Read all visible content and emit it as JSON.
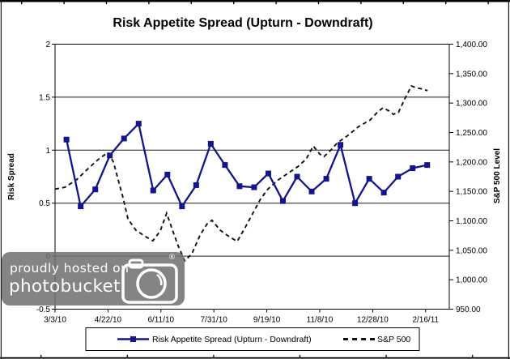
{
  "chart_data": {
    "type": "line",
    "title": "Risk Appetite Spread (Upturn - Downdraft)",
    "legend_position": "bottom",
    "grid": "horizontal",
    "x_unit": "fraction of plot width (0 = left axis 3/3/10, 1 = right axis)",
    "x_axis": {
      "tick_labels": [
        "3/3/10",
        "4/22/10",
        "6/11/10",
        "7/31/10",
        "9/19/10",
        "11/8/10",
        "12/28/10",
        "2/16/11"
      ],
      "last_label_fraction": 0.94
    },
    "left_axis": {
      "label": "Risk Spread",
      "min": -0.5,
      "max": 2,
      "tick_values": [
        2,
        1.5,
        1,
        0.5,
        0,
        -0.5
      ],
      "tick_labels": [
        "2",
        "1.5",
        "1",
        "0.5",
        "0",
        "-0.5"
      ]
    },
    "right_axis": {
      "label": "S&P 500 Level",
      "min": 950,
      "max": 1400,
      "tick_values": [
        1400,
        1350,
        1300,
        1250,
        1200,
        1150,
        1100,
        1050,
        1000,
        950
      ],
      "tick_labels": [
        "1,400.00",
        "1,350.00",
        "1,300.00",
        "1,250.00",
        "1,200.00",
        "1,150.00",
        "1,100.00",
        "1,050.00",
        "1,000.00",
        "950.00"
      ]
    },
    "gridline_values_left": [
      1.5,
      1,
      0.5,
      0
    ],
    "series": [
      {
        "name": "Risk Appetite Spread (Upturn - Downdraft)",
        "axis": "left",
        "line": "solid",
        "marker": "square",
        "color": "#14148c",
        "points": [
          [
            0.029,
            1.1
          ],
          [
            0.065,
            0.47
          ],
          [
            0.102,
            0.63
          ],
          [
            0.139,
            0.95
          ],
          [
            0.175,
            1.11
          ],
          [
            0.212,
            1.25
          ],
          [
            0.249,
            0.62
          ],
          [
            0.285,
            0.77
          ],
          [
            0.322,
            0.47
          ],
          [
            0.358,
            0.67
          ],
          [
            0.395,
            1.06
          ],
          [
            0.431,
            0.86
          ],
          [
            0.468,
            0.66
          ],
          [
            0.505,
            0.65
          ],
          [
            0.541,
            0.78
          ],
          [
            0.578,
            0.52
          ],
          [
            0.614,
            0.75
          ],
          [
            0.651,
            0.61
          ],
          [
            0.688,
            0.73
          ],
          [
            0.724,
            1.05
          ],
          [
            0.761,
            0.5
          ],
          [
            0.797,
            0.73
          ],
          [
            0.834,
            0.6
          ],
          [
            0.87,
            0.75
          ],
          [
            0.907,
            0.83
          ],
          [
            0.944,
            0.86
          ]
        ]
      },
      {
        "name": "S&P 500",
        "axis": "right",
        "line": "dashed",
        "marker": "none",
        "color": "#111111",
        "points": [
          [
            0.0,
            1154
          ],
          [
            0.025,
            1157
          ],
          [
            0.055,
            1170
          ],
          [
            0.086,
            1190
          ],
          [
            0.111,
            1205
          ],
          [
            0.134,
            1216
          ],
          [
            0.148,
            1200
          ],
          [
            0.162,
            1165
          ],
          [
            0.173,
            1138
          ],
          [
            0.185,
            1103
          ],
          [
            0.205,
            1084
          ],
          [
            0.23,
            1073
          ],
          [
            0.248,
            1066
          ],
          [
            0.267,
            1083
          ],
          [
            0.283,
            1113
          ],
          [
            0.298,
            1084
          ],
          [
            0.312,
            1058
          ],
          [
            0.329,
            1032
          ],
          [
            0.347,
            1044
          ],
          [
            0.368,
            1076
          ],
          [
            0.386,
            1095
          ],
          [
            0.398,
            1101
          ],
          [
            0.419,
            1084
          ],
          [
            0.442,
            1073
          ],
          [
            0.462,
            1065
          ],
          [
            0.481,
            1087
          ],
          [
            0.501,
            1112
          ],
          [
            0.522,
            1138
          ],
          [
            0.54,
            1154
          ],
          [
            0.565,
            1169
          ],
          [
            0.589,
            1180
          ],
          [
            0.616,
            1192
          ],
          [
            0.637,
            1205
          ],
          [
            0.655,
            1227
          ],
          [
            0.672,
            1213
          ],
          [
            0.682,
            1209
          ],
          [
            0.698,
            1219
          ],
          [
            0.717,
            1233
          ],
          [
            0.743,
            1245
          ],
          [
            0.77,
            1260
          ],
          [
            0.799,
            1271
          ],
          [
            0.817,
            1284
          ],
          [
            0.832,
            1292
          ],
          [
            0.846,
            1287
          ],
          [
            0.858,
            1281
          ],
          [
            0.871,
            1284
          ],
          [
            0.887,
            1307
          ],
          [
            0.904,
            1329
          ],
          [
            0.916,
            1326
          ],
          [
            0.93,
            1324
          ],
          [
            0.945,
            1321
          ]
        ]
      }
    ]
  },
  "watermark": {
    "line1": "proudly hosted on",
    "line2": "photobucket",
    "registered_mark": "®"
  }
}
